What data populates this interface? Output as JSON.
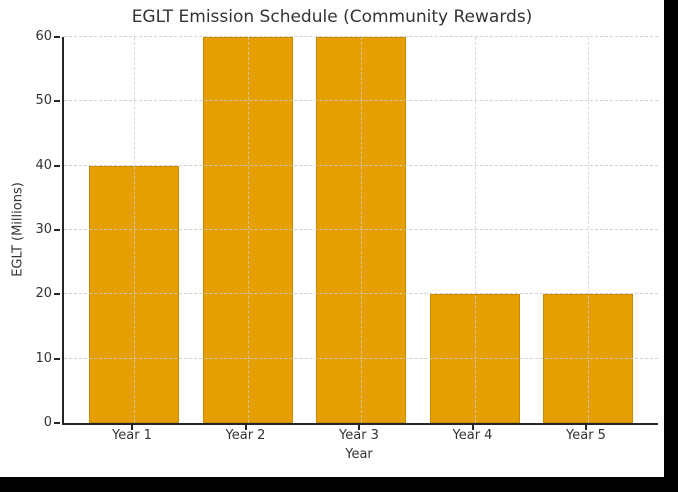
{
  "frame": {
    "background_color": "#000000",
    "canvas_color": "#FFFFFF"
  },
  "chart_data": {
    "type": "bar",
    "title": "EGLT Emission Schedule (Community Rewards)",
    "xlabel": "Year",
    "ylabel": "EGLT (Millions)",
    "categories": [
      "Year 1",
      "Year 2",
      "Year 3",
      "Year 4",
      "Year 5"
    ],
    "values": [
      40,
      60,
      60,
      20,
      20
    ],
    "ylim": [
      0,
      60
    ],
    "yticks": [
      0,
      10,
      20,
      30,
      40,
      50,
      60
    ],
    "legend": "none",
    "grid": "dashed, horizontal and vertical at category centers",
    "bar_color": "#E69F00",
    "bar_edge_color": "#C88A00",
    "axis_color": "#262626",
    "grid_color": "#CCCCCC",
    "text_color": "#333333"
  }
}
